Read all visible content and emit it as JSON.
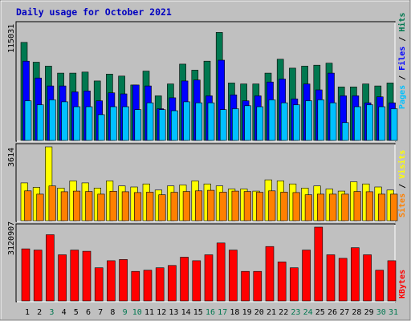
{
  "title": "Daily usage for October 2021",
  "colors": {
    "background": "#c0c0c0",
    "plot_bg": "#c0c0c0",
    "title": "#0000c0",
    "hits": "#007850",
    "files": "#0000ff",
    "pages": "#00c0ff",
    "visits": "#ffff00",
    "sites": "#ff8000",
    "kbytes": "#ff0000",
    "weekday_label": "#000000",
    "weekend_label": "#007850"
  },
  "chart_data": [
    {
      "type": "bar",
      "panel": "hits-files-pages",
      "ymax_label": "115031",
      "ymax": 115031,
      "legend": [
        "Pages",
        "Files",
        "Hits"
      ],
      "categories": [
        "1",
        "2",
        "3",
        "4",
        "5",
        "6",
        "7",
        "8",
        "9",
        "10",
        "11",
        "12",
        "13",
        "14",
        "15",
        "16",
        "17",
        "18",
        "19",
        "20",
        "21",
        "22",
        "23",
        "24",
        "25",
        "26",
        "27",
        "28",
        "29",
        "30",
        "31"
      ],
      "weekend": [
        false,
        false,
        true,
        false,
        false,
        false,
        false,
        false,
        true,
        true,
        false,
        false,
        false,
        false,
        false,
        true,
        true,
        false,
        false,
        false,
        false,
        false,
        true,
        true,
        false,
        false,
        false,
        false,
        false,
        true,
        true
      ],
      "series": [
        {
          "name": "Hits",
          "values": [
            99000,
            79000,
            75000,
            68000,
            68000,
            69000,
            60000,
            67000,
            65000,
            56000,
            70000,
            45000,
            57000,
            77000,
            71000,
            80000,
            109000,
            58000,
            57000,
            57000,
            68000,
            82000,
            73000,
            75000,
            76000,
            78000,
            54000,
            54000,
            57000,
            55000,
            58000
          ]
        },
        {
          "name": "Files",
          "values": [
            80000,
            63000,
            55000,
            55000,
            49000,
            50000,
            40000,
            48000,
            47000,
            56000,
            55000,
            32000,
            43000,
            60000,
            61000,
            45000,
            81000,
            46000,
            40000,
            45000,
            59000,
            62000,
            42000,
            57000,
            51000,
            68000,
            45000,
            45000,
            38000,
            44000,
            38000
          ]
        },
        {
          "name": "Pages",
          "values": [
            40000,
            36000,
            41000,
            39000,
            34000,
            34000,
            26000,
            34000,
            34000,
            31000,
            38000,
            31000,
            30000,
            39000,
            38000,
            38000,
            31000,
            32000,
            35000,
            34000,
            41000,
            38000,
            36000,
            40000,
            41000,
            38000,
            18000,
            34000,
            36000,
            34000,
            32000
          ]
        }
      ]
    },
    {
      "type": "bar",
      "panel": "visits-sites",
      "ymax_label": "3614",
      "ymax": 3614,
      "legend": [
        "Sites",
        "Visits"
      ],
      "categories": [
        "1",
        "2",
        "3",
        "4",
        "5",
        "6",
        "7",
        "8",
        "9",
        "10",
        "11",
        "12",
        "13",
        "14",
        "15",
        "16",
        "17",
        "18",
        "19",
        "20",
        "21",
        "22",
        "23",
        "24",
        "25",
        "26",
        "27",
        "28",
        "29",
        "30",
        "31"
      ],
      "series": [
        {
          "name": "Visits",
          "values": [
            1850,
            1630,
            3614,
            1600,
            1950,
            1850,
            1600,
            1950,
            1700,
            1650,
            1800,
            1500,
            1700,
            1750,
            1950,
            1800,
            1700,
            1550,
            1550,
            1450,
            2000,
            1950,
            1800,
            1600,
            1700,
            1550,
            1450,
            1900,
            1800,
            1650,
            1500
          ]
        },
        {
          "name": "Sites",
          "values": [
            1460,
            1300,
            1700,
            1420,
            1450,
            1430,
            1300,
            1440,
            1420,
            1380,
            1400,
            1270,
            1390,
            1430,
            1460,
            1490,
            1400,
            1450,
            1430,
            1390,
            1460,
            1400,
            1380,
            1270,
            1300,
            1300,
            1300,
            1430,
            1420,
            1300,
            1300
          ]
        }
      ]
    },
    {
      "type": "bar",
      "panel": "kbytes",
      "ymax_label": "3120907",
      "ymax": 3120907,
      "legend": [
        "KBytes"
      ],
      "categories": [
        "1",
        "2",
        "3",
        "4",
        "5",
        "6",
        "7",
        "8",
        "9",
        "10",
        "11",
        "12",
        "13",
        "14",
        "15",
        "16",
        "17",
        "18",
        "19",
        "20",
        "21",
        "22",
        "23",
        "24",
        "25",
        "26",
        "27",
        "28",
        "29",
        "30",
        "31"
      ],
      "series": [
        {
          "name": "KBytes",
          "values": [
            2200,
            2150,
            2800,
            1950,
            2150,
            2100,
            1400,
            1700,
            1750,
            1250,
            1300,
            1400,
            1500,
            1850,
            1700,
            1950,
            2450,
            2150,
            1250,
            1250,
            2300,
            1650,
            1400,
            2150,
            3120,
            1950,
            1800,
            2250,
            1950,
            1300,
            1700
          ]
        }
      ]
    }
  ]
}
